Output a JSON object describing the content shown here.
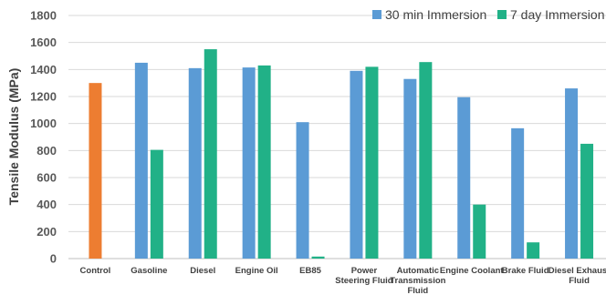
{
  "chart_data": {
    "type": "bar",
    "title": "",
    "xlabel": "",
    "ylabel": "Tensile Modulus (MPa)",
    "ylim": [
      0,
      1800
    ],
    "yticks": [
      0,
      200,
      400,
      600,
      800,
      1000,
      1200,
      1400,
      1600,
      1800
    ],
    "grid": true,
    "legend_position": "top-right",
    "categories": [
      [
        "Control"
      ],
      [
        "Gasoline"
      ],
      [
        "Diesel"
      ],
      [
        "Engine Oil"
      ],
      [
        "EB85"
      ],
      [
        "Power",
        "Steering Fluid"
      ],
      [
        "Automatic",
        "Transmission",
        "Fluid"
      ],
      [
        "Engine Coolant"
      ],
      [
        "Brake Fluid"
      ],
      [
        "Diesel Exhaust",
        "Fluid"
      ]
    ],
    "control": {
      "value": 1300,
      "color": "#ED7D31"
    },
    "series": [
      {
        "name": "30 min Immersion",
        "color": "#5B9BD5",
        "values": [
          null,
          1450,
          1410,
          1415,
          1010,
          1390,
          1330,
          1195,
          965,
          1260
        ]
      },
      {
        "name": "7 day Immersion",
        "color": "#21B187",
        "values": [
          null,
          805,
          1550,
          1430,
          15,
          1420,
          1455,
          400,
          120,
          850
        ]
      }
    ]
  }
}
